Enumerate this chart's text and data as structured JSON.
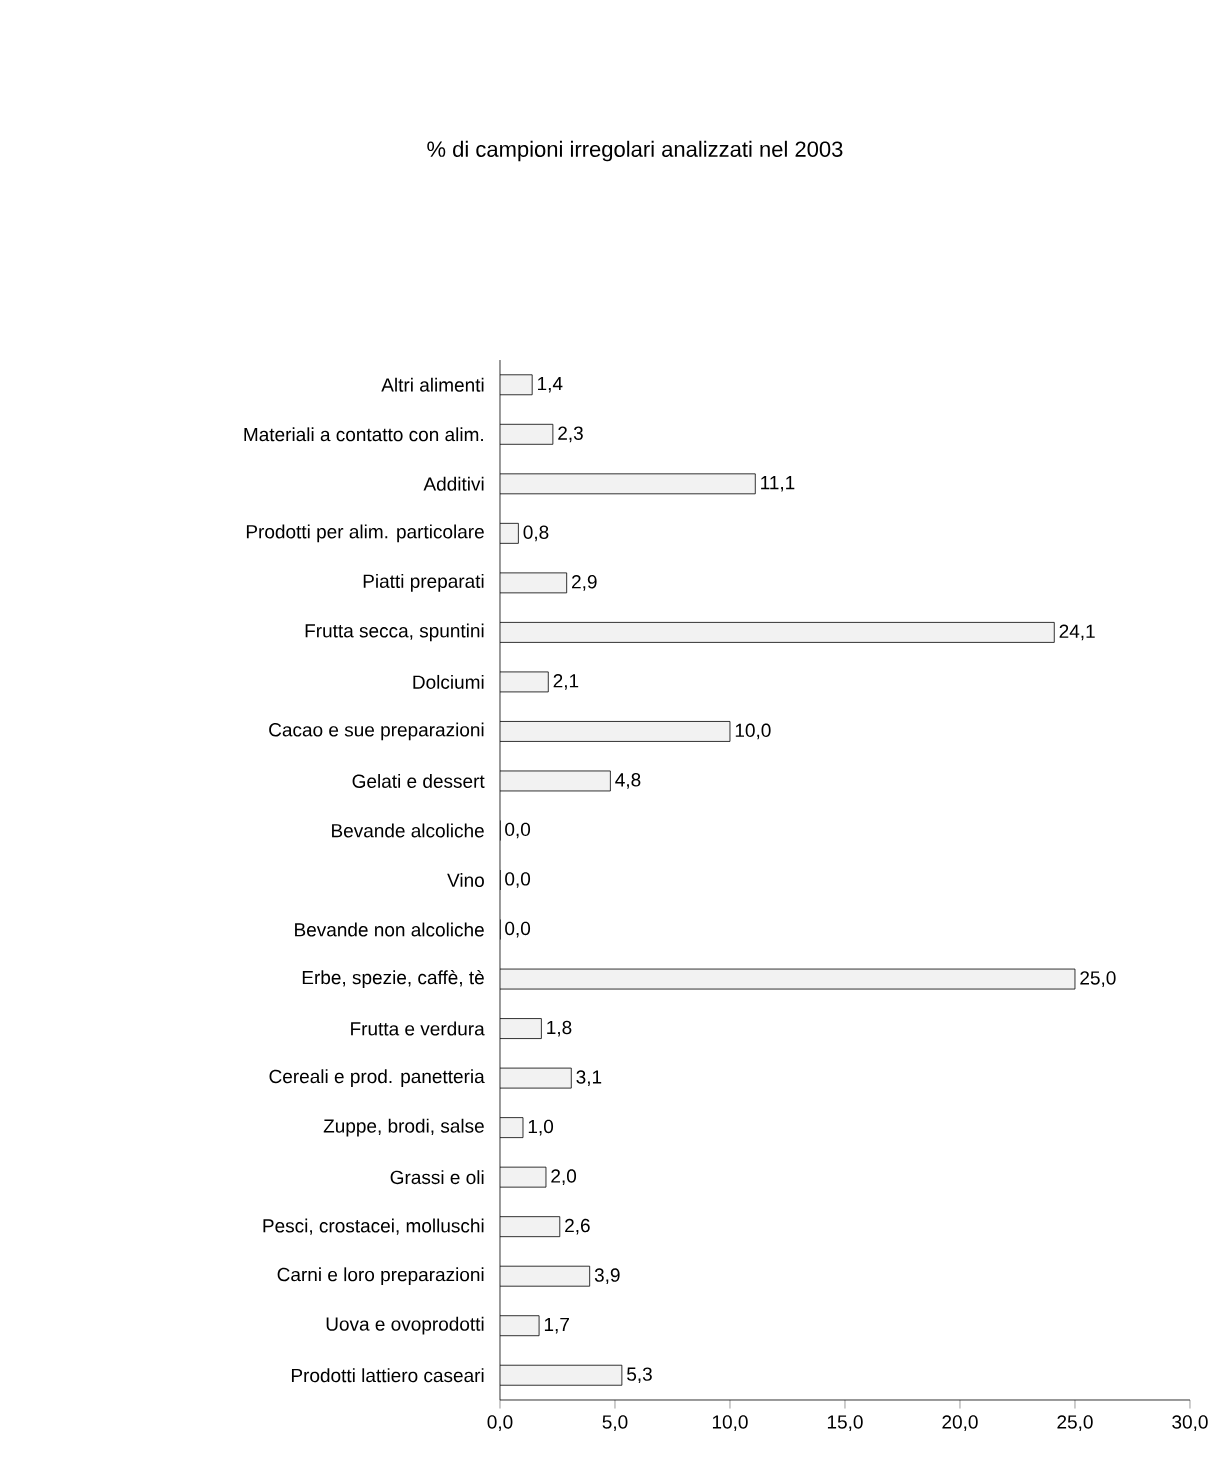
{
  "chart_data": {
    "type": "bar",
    "orientation": "horizontal",
    "title": "% di campioni irregolari analizzati nel 2003",
    "categories": [
      "Altri alimenti",
      "Materiali a contatto con alim.",
      "Additivi",
      "Prodotti per alim. particolare",
      "Piatti preparati",
      "Frutta secca, spuntini",
      "Dolciumi",
      "Cacao e sue preparazioni",
      "Gelati e dessert",
      "Bevande alcoliche",
      "Vino",
      "Bevande non alcoliche",
      "Erbe, spezie, caffè, tè",
      "Frutta e verdura",
      "Cereali e prod. panetteria",
      "Zuppe, brodi, salse",
      "Grassi e oli",
      "Pesci, crostacei, molluschi",
      "Carni e loro preparazioni",
      "Uova e ovoprodotti",
      "Prodotti lattiero caseari"
    ],
    "values": [
      1.4,
      2.3,
      11.1,
      0.8,
      2.9,
      24.1,
      2.1,
      10.0,
      4.8,
      0.0,
      0.0,
      0.0,
      25.0,
      1.8,
      3.1,
      1.0,
      2.0,
      2.6,
      3.9,
      1.7,
      5.3
    ],
    "value_labels": [
      "1,4",
      "2,3",
      "11,1",
      "0,8",
      "2,9",
      "24,1",
      "2,1",
      "10,0",
      "4,8",
      "0,0",
      "0,0",
      "0,0",
      "25,0",
      "1,8",
      "3,1",
      "1,0",
      "2,0",
      "2,6",
      "3,9",
      "1,7",
      "5,3"
    ],
    "color": "#f2f2f2",
    "xlim": [
      0,
      30
    ],
    "xticks": [
      {
        "value": 0,
        "label": "0,0"
      },
      {
        "value": 5,
        "label": "5,0"
      },
      {
        "value": 10,
        "label": "10,0"
      },
      {
        "value": 15,
        "label": "15,0"
      },
      {
        "value": 20,
        "label": "20,0"
      },
      {
        "value": 25,
        "label": "25,0"
      },
      {
        "value": 30,
        "label": "30,0"
      }
    ],
    "grid": false
  }
}
